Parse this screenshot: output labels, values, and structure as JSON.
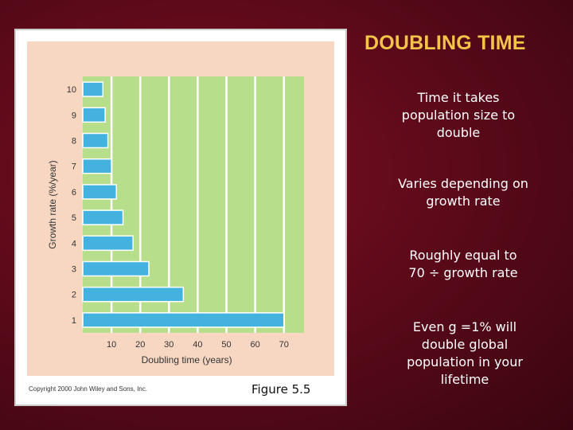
{
  "slide": {
    "title": "DOUBLING TIME",
    "bullets": [
      "Time it takes\npopulation size to\ndouble",
      "Varies depending on\ngrowth rate",
      "Roughly equal to\n70 ÷ growth rate",
      "Even g =1% will\ndouble global\npopulation in your\nlifetime"
    ],
    "copyright": "Copyright 2000 John Wiley and Sons, Inc.",
    "figure_label": "Figure 5.5"
  },
  "colors": {
    "bar": "#44b2de",
    "bar_outline": "#ffffff",
    "plot_bg": "#b7de8a",
    "gridline": "#ffffff",
    "frame": "#f7d7c2",
    "title": "#f4c44a"
  },
  "chart_data": {
    "type": "bar",
    "orientation": "horizontal",
    "categories": [
      "1",
      "2",
      "3",
      "4",
      "5",
      "6",
      "7",
      "8",
      "9",
      "10"
    ],
    "values": [
      70,
      35,
      23,
      17.5,
      14,
      11.7,
      10,
      8.75,
      7.8,
      7
    ],
    "xlabel": "Doubling time (years)",
    "ylabel": "Growth rate (%/year)",
    "xticks": [
      10,
      20,
      30,
      40,
      50,
      60,
      70
    ],
    "xlim": [
      0,
      77
    ],
    "grid": true
  }
}
